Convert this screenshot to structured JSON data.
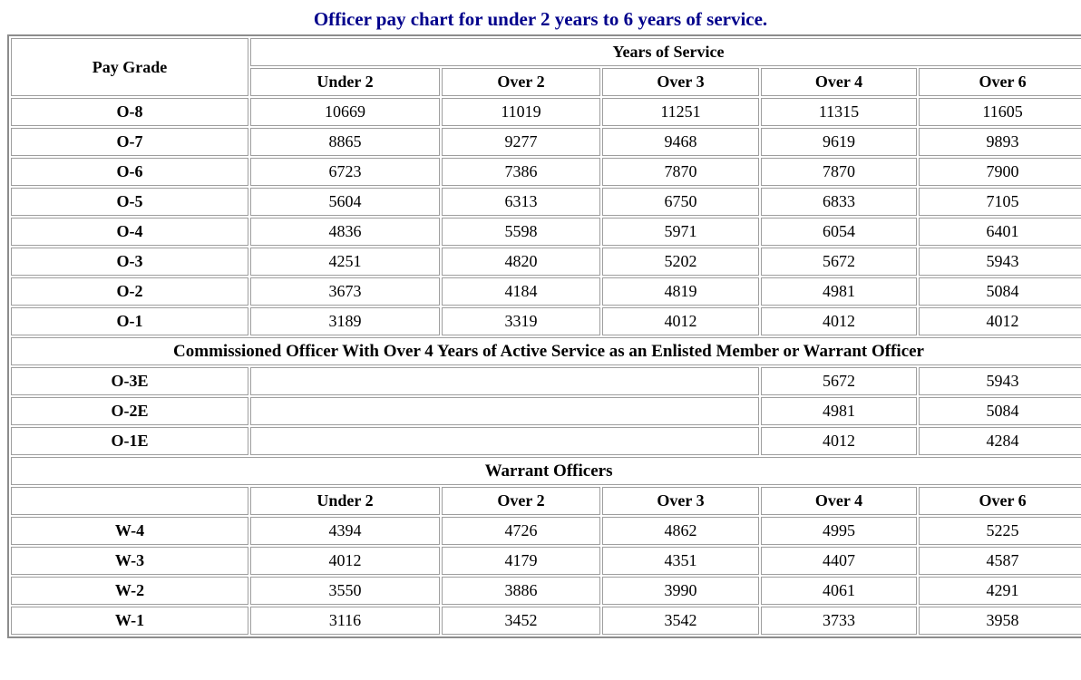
{
  "colors": {
    "title_text": "#00008b",
    "table_outer_border": "#8c8c8c",
    "cell_border": "#9e9e9e",
    "background": "#ffffff"
  },
  "chart_data": {
    "type": "table",
    "title": "Officer pay chart for under 2 years to 6 years of service.",
    "corner_header": "Pay Grade",
    "group_header": "Years of Service",
    "columns": [
      "Under 2",
      "Over 2",
      "Over 3",
      "Over 4",
      "Over 6"
    ],
    "officers": [
      {
        "grade": "O-8",
        "values": [
          10669,
          11019,
          11251,
          11315,
          11605
        ]
      },
      {
        "grade": "O-7",
        "values": [
          8865,
          9277,
          9468,
          9619,
          9893
        ]
      },
      {
        "grade": "O-6",
        "values": [
          6723,
          7386,
          7870,
          7870,
          7900
        ]
      },
      {
        "grade": "O-5",
        "values": [
          5604,
          6313,
          6750,
          6833,
          7105
        ]
      },
      {
        "grade": "O-4",
        "values": [
          4836,
          5598,
          5971,
          6054,
          6401
        ]
      },
      {
        "grade": "O-3",
        "values": [
          4251,
          4820,
          5202,
          5672,
          5943
        ]
      },
      {
        "grade": "O-2",
        "values": [
          3673,
          4184,
          4819,
          4981,
          5084
        ]
      },
      {
        "grade": "O-1",
        "values": [
          3189,
          3319,
          4012,
          4012,
          4012
        ]
      }
    ],
    "prior_enlisted_header": "Commissioned Officer With Over 4 Years of Active Service as an Enlisted Member or Warrant Officer",
    "prior_enlisted": [
      {
        "grade": "O-3E",
        "over_4": 5672,
        "over_6": 5943
      },
      {
        "grade": "O-2E",
        "over_4": 4981,
        "over_6": 5084
      },
      {
        "grade": "O-1E",
        "over_4": 4012,
        "over_6": 4284
      }
    ],
    "warrant_header": "Warrant Officers",
    "warrant_columns": [
      "Under 2",
      "Over 2",
      "Over 3",
      "Over 4",
      "Over 6"
    ],
    "warrants": [
      {
        "grade": "W-4",
        "values": [
          4394,
          4726,
          4862,
          4995,
          5225
        ]
      },
      {
        "grade": "W-3",
        "values": [
          4012,
          4179,
          4351,
          4407,
          4587
        ]
      },
      {
        "grade": "W-2",
        "values": [
          3550,
          3886,
          3990,
          4061,
          4291
        ]
      },
      {
        "grade": "W-1",
        "values": [
          3116,
          3452,
          3542,
          3733,
          3958
        ]
      }
    ]
  }
}
